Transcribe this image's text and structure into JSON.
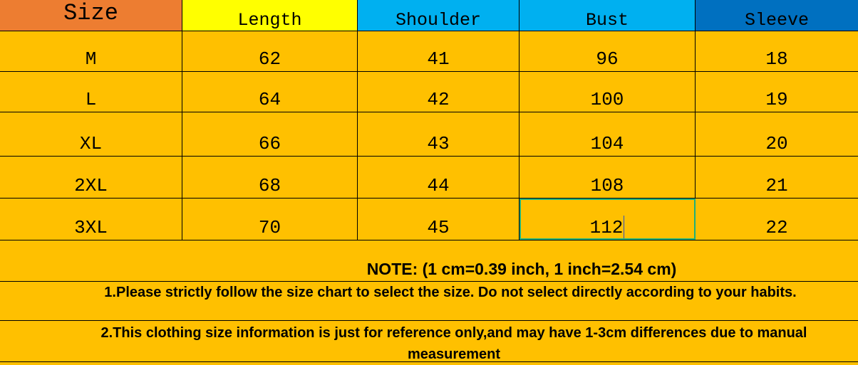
{
  "headers": [
    {
      "label": "Size",
      "color": "#ed7d31"
    },
    {
      "label": "Length",
      "color": "#ffff00"
    },
    {
      "label": "Shoulder",
      "color": "#00b0f0"
    },
    {
      "label": "Bust",
      "color": "#00b0f0"
    },
    {
      "label": "Sleeve",
      "color": "#0070c0"
    }
  ],
  "rows": [
    [
      "M",
      "62",
      "41",
      "96",
      "18"
    ],
    [
      "L",
      "64",
      "42",
      "100",
      "19"
    ],
    [
      "XL",
      "66",
      "43",
      "104",
      "20"
    ],
    [
      "2XL",
      "68",
      "44",
      "108",
      "21"
    ],
    [
      "3XL",
      "70",
      "45",
      "112",
      "22"
    ]
  ],
  "body_color": "#ffc000",
  "selected_cell_color": "#1fb07a",
  "notes": {
    "title": "NOTE: (1 cm=0.39 inch,  1 inch=2.54 cm)",
    "line1": "1.Please strictly follow the size chart to select the size. Do not select directly according to your habits.",
    "line2": "2.This clothing size information is just for reference only,and may have 1-3cm differences due to manual measurement"
  }
}
